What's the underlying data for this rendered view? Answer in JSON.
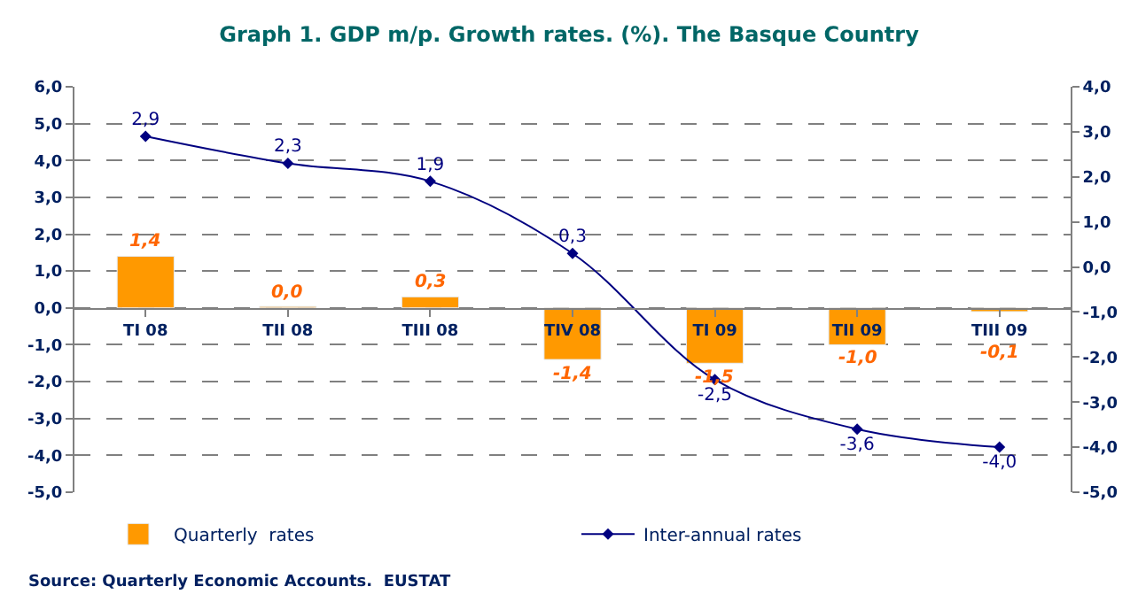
{
  "chart_data": {
    "type": "bar",
    "title": "Graph 1. GDP m/p. Growth rates. (%). The Basque Country",
    "categories": [
      "TI 08",
      "TII 08",
      "TIII 08",
      "TIV 08",
      "TI 09",
      "TII 09",
      "TIII 09"
    ],
    "series": [
      {
        "name": "Quarterly  rates",
        "color": "#ff9900",
        "values": [
          1.4,
          0.04,
          0.3,
          -1.4,
          -1.5,
          -1.0,
          -0.1
        ],
        "value_labels": [
          "1,4",
          "0,0",
          "0,3",
          "-1,4",
          "-1,5",
          "-1,0",
          "-0,1"
        ]
      },
      {
        "name": "Inter-annual rates",
        "type": "line",
        "axis": "y2",
        "color": "#000080",
        "marker": "diamond",
        "values": [
          2.9,
          2.3,
          1.9,
          0.3,
          -2.5,
          -3.6,
          -4.0
        ],
        "value_labels": [
          "2,9",
          "2,3",
          "1,9",
          "0,3",
          "-2,5",
          "-3,6",
          "-4,0"
        ]
      }
    ],
    "ylim": [
      -5,
      6
    ],
    "yticks": [
      {
        "value": -5,
        "label": "-5,0"
      },
      {
        "value": -4,
        "label": "-4,0"
      },
      {
        "value": -3,
        "label": "-3,0"
      },
      {
        "value": -2,
        "label": "-2,0"
      },
      {
        "value": -1,
        "label": "-1,0"
      },
      {
        "value": 0,
        "label": "0,0"
      },
      {
        "value": 1,
        "label": "1,0"
      },
      {
        "value": 2,
        "label": "2,0"
      },
      {
        "value": 3,
        "label": "3,0"
      },
      {
        "value": 4,
        "label": "4,0"
      },
      {
        "value": 5,
        "label": "5,0"
      },
      {
        "value": 6,
        "label": "6,0"
      }
    ],
    "y2lim": [
      -5,
      4
    ],
    "y2ticks": [
      {
        "value": -5,
        "label": "-5,0"
      },
      {
        "value": -4,
        "label": "-4,0"
      },
      {
        "value": -3,
        "label": "-3,0"
      },
      {
        "value": -2,
        "label": "-2,0"
      },
      {
        "value": -1,
        "label": "-1,0"
      },
      {
        "value": 0,
        "label": "0,0"
      },
      {
        "value": 1,
        "label": "1,0"
      },
      {
        "value": 2,
        "label": "2,0"
      },
      {
        "value": 3,
        "label": "3,0"
      },
      {
        "value": 4,
        "label": "4,0"
      }
    ],
    "grid": "y",
    "legend": "bottom",
    "annotations": [
      "Source: Quarterly Economic Accounts.  EUSTAT"
    ]
  }
}
